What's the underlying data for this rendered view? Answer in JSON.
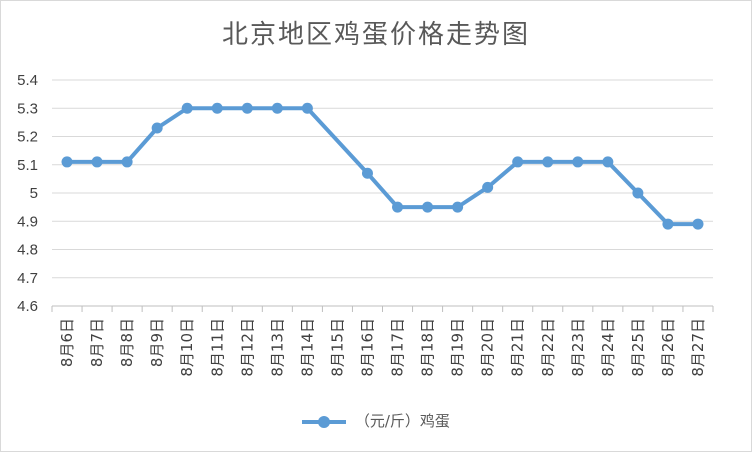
{
  "chart_data": {
    "type": "line",
    "title": "北京地区鸡蛋价格走势图",
    "xlabel": "",
    "ylabel": "",
    "categories": [
      "8月6日",
      "8月7日",
      "8月8日",
      "8月9日",
      "8月10日",
      "8月11日",
      "8月12日",
      "8月13日",
      "8月14日",
      "8月15日",
      "8月16日",
      "8月17日",
      "8月18日",
      "8月19日",
      "8月20日",
      "8月21日",
      "8月22日",
      "8月23日",
      "8月24日",
      "8月25日",
      "8月26日",
      "8月27日"
    ],
    "series": [
      {
        "name": "（元/斤）鸡蛋",
        "values": [
          5.11,
          5.11,
          5.11,
          5.23,
          5.3,
          5.3,
          5.3,
          5.3,
          5.3,
          null,
          5.07,
          4.95,
          4.95,
          4.95,
          5.02,
          5.11,
          5.11,
          5.11,
          5.11,
          5.0,
          4.89,
          4.89
        ],
        "color": "#5b9bd5"
      }
    ],
    "ylim": [
      4.6,
      5.4
    ],
    "yticks": [
      "4.6",
      "4.7",
      "4.8",
      "4.9",
      "5",
      "5.1",
      "5.2",
      "5.3",
      "5.4"
    ],
    "grid": true,
    "legend_position": "bottom"
  }
}
